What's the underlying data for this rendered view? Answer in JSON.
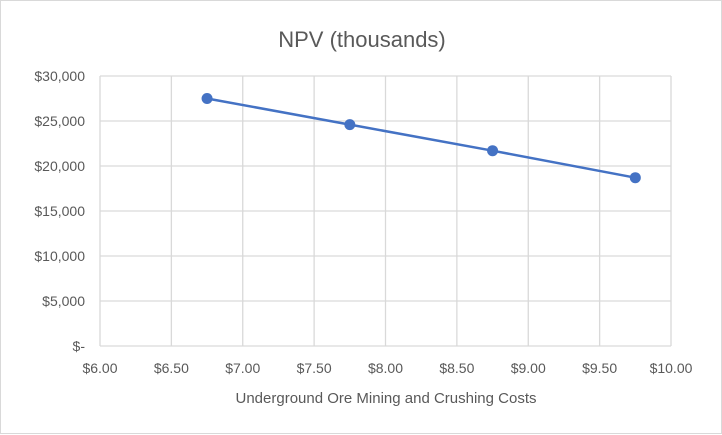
{
  "chart_data": {
    "type": "line",
    "title": "NPV (thousands)",
    "xlabel": "Underground Ore Mining and Crushing Costs",
    "ylabel": "",
    "x": [
      6.75,
      7.75,
      8.75,
      9.75
    ],
    "series": [
      {
        "values": [
          27500,
          24600,
          21700,
          18700
        ],
        "color": "#4472c4"
      }
    ],
    "xlim": [
      6.0,
      10.0
    ],
    "ylim": [
      0,
      30000
    ],
    "x_ticks": [
      6.0,
      6.5,
      7.0,
      7.5,
      8.0,
      8.5,
      9.0,
      9.5,
      10.0
    ],
    "x_tick_labels": [
      "$6.00",
      "$6.50",
      "$7.00",
      "$7.50",
      "$8.00",
      "$8.50",
      "$9.00",
      "$9.50",
      "$10.00"
    ],
    "y_ticks": [
      0,
      5000,
      10000,
      15000,
      20000,
      25000,
      30000
    ],
    "y_tick_labels": [
      "$-",
      "$5,000",
      "$10,000",
      "$15,000",
      "$20,000",
      "$25,000",
      "$30,000"
    ],
    "grid": true,
    "legend": "none"
  }
}
